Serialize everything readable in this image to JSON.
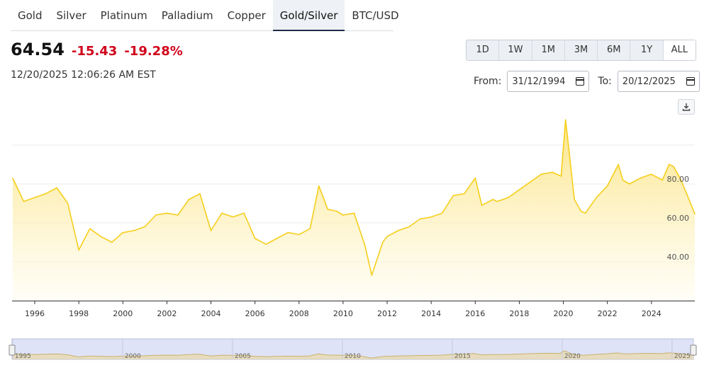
{
  "tabs": [
    {
      "label": "Gold",
      "active": false
    },
    {
      "label": "Silver",
      "active": false
    },
    {
      "label": "Platinum",
      "active": false
    },
    {
      "label": "Palladium",
      "active": false
    },
    {
      "label": "Copper",
      "active": false
    },
    {
      "label": "Gold/Silver",
      "active": true
    },
    {
      "label": "BTC/USD",
      "active": false
    }
  ],
  "quote": {
    "last": "64.54",
    "change": "-15.43",
    "change_pct": "-19.28%",
    "timestamp": "12/20/2025 12:06:26 AM EST"
  },
  "ranges": [
    {
      "label": "1D",
      "active": false
    },
    {
      "label": "1W",
      "active": false
    },
    {
      "label": "1M",
      "active": false
    },
    {
      "label": "3M",
      "active": false
    },
    {
      "label": "6M",
      "active": false
    },
    {
      "label": "1Y",
      "active": false
    },
    {
      "label": "ALL",
      "active": true
    }
  ],
  "date_range": {
    "from_label": "From:",
    "from_value": "31/12/1994",
    "to_label": "To:",
    "to_value": "20/12/2025"
  },
  "colors": {
    "accent_line": "#f5cf1c",
    "fill_top": "#fbe27a",
    "fill_bottom": "#fffdf2",
    "negative": "#d0021b",
    "navigator_bg": "#dfe3f8"
  },
  "icons": {
    "download": "download-icon",
    "calendar": "calendar-icon"
  },
  "chart_data": {
    "type": "area",
    "x": [
      1995,
      1995.5,
      1996,
      1996.5,
      1997,
      1997.5,
      1998,
      1998.5,
      1999,
      1999.5,
      2000,
      2000.5,
      2001,
      2001.5,
      2002,
      2002.5,
      2003,
      2003.5,
      2004,
      2004.5,
      2005,
      2005.5,
      2006,
      2006.5,
      2007,
      2007.5,
      2008,
      2008.5,
      2008.9,
      2009.3,
      2009.7,
      2010,
      2010.5,
      2011,
      2011.3,
      2011.8,
      2012,
      2012.5,
      2013,
      2013.5,
      2014,
      2014.5,
      2015,
      2015.5,
      2016,
      2016.3,
      2016.8,
      2017,
      2017.5,
      2018,
      2018.5,
      2019,
      2019.5,
      2019.9,
      2020.1,
      2020.25,
      2020.5,
      2020.8,
      2021,
      2021.5,
      2022,
      2022.5,
      2022.7,
      2023,
      2023.5,
      2024,
      2024.5,
      2024.8,
      2025,
      2025.3,
      2025.6,
      2025.97
    ],
    "values": [
      83,
      71,
      73,
      75,
      78,
      70,
      46,
      57,
      53,
      50,
      55,
      56,
      58,
      64,
      65,
      64,
      72,
      75,
      56,
      65,
      63,
      65,
      52,
      49,
      52,
      55,
      54,
      57,
      79,
      67,
      66,
      64,
      65,
      48,
      33,
      50,
      53,
      56,
      58,
      62,
      63,
      65,
      74,
      75,
      83,
      69,
      72,
      71,
      73,
      77,
      81,
      85,
      86,
      84,
      113,
      98,
      72,
      66,
      65,
      73,
      79,
      90,
      82,
      80,
      83,
      85,
      82,
      90,
      89,
      83,
      75,
      64.54
    ],
    "xlabel": "",
    "ylabel": "",
    "y_ticks": [
      40,
      60,
      80
    ],
    "y_tick_labels": [
      "40.00",
      "60.00",
      "80.00"
    ],
    "x_ticks": [
      1996,
      1998,
      2000,
      2002,
      2004,
      2006,
      2008,
      2010,
      2012,
      2014,
      2016,
      2018,
      2020,
      2022,
      2024
    ],
    "x_tick_labels": [
      "1996",
      "1998",
      "2000",
      "2002",
      "2004",
      "2006",
      "2008",
      "2010",
      "2012",
      "2014",
      "2016",
      "2018",
      "2020",
      "2022",
      "2024"
    ],
    "xlim": [
      1994.97,
      2025.97
    ],
    "ylim": [
      20,
      120
    ],
    "grid": "horizontal",
    "navigator": {
      "x_ticks": [
        1995,
        2000,
        2005,
        2010,
        2015,
        2020,
        2025
      ],
      "x_tick_labels": [
        "1995",
        "2000",
        "2005",
        "2010",
        "2015",
        "2020",
        "2025"
      ]
    }
  }
}
